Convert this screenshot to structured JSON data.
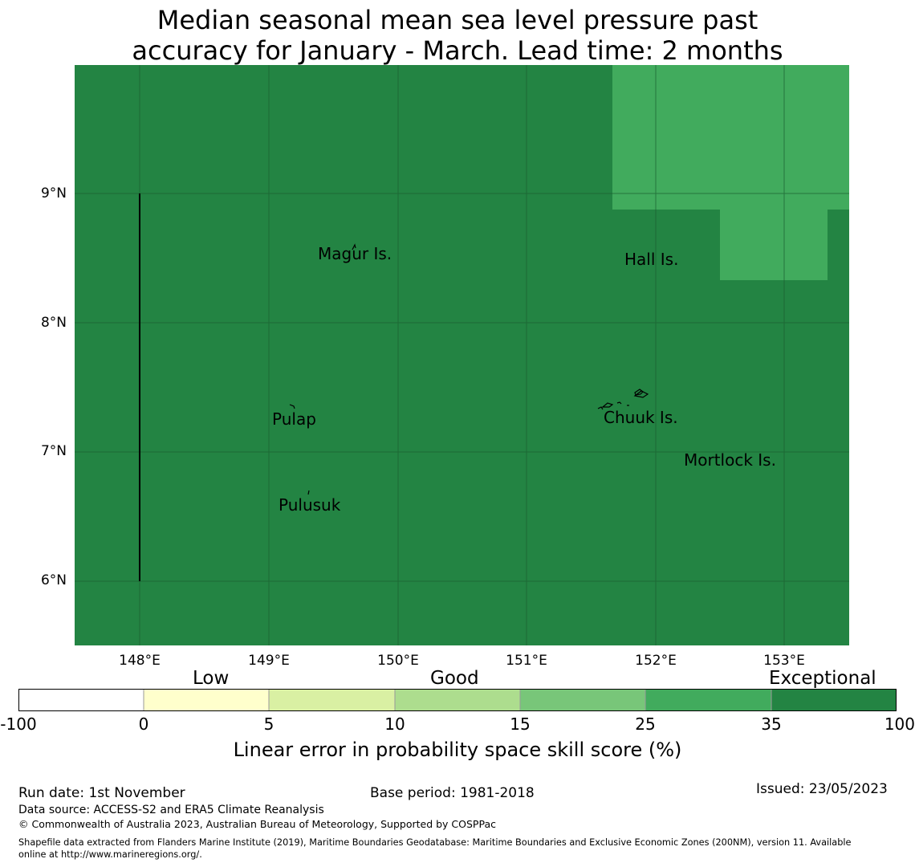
{
  "title": {
    "line1": "Median seasonal mean sea level pressure past",
    "line2": "accuracy for January - March. Lead time: 2 months"
  },
  "map": {
    "lon_range": [
      147.5,
      153.5
    ],
    "lat_range": [
      5.5,
      10.0
    ],
    "lat_ticks": [
      "9°N",
      "8°N",
      "7°N",
      "6°N"
    ],
    "lon_ticks": [
      "148°E",
      "149°E",
      "150°E",
      "151°E",
      "152°E",
      "153°E"
    ],
    "skill_regions": [
      {
        "category": "35-100",
        "color": "#238443",
        "lon": [
          147.5,
          153.5
        ],
        "lat": [
          5.5,
          10.0
        ]
      },
      {
        "category": "25-35",
        "color": "#41ab5d",
        "lon": [
          151.67,
          153.5
        ],
        "lat": [
          8.88,
          10.0
        ]
      },
      {
        "category": "25-35",
        "color": "#41ab5d",
        "lon": [
          152.5,
          153.33
        ],
        "lat": [
          8.33,
          8.88
        ]
      }
    ],
    "boundary_line": {
      "lon": 148.0,
      "lat": [
        6.0,
        9.0
      ]
    },
    "places": [
      {
        "name": "Magur Is.",
        "lon": 149.65,
        "lat": 8.52
      },
      {
        "name": "Hall Is.",
        "lon": 151.97,
        "lat": 8.48
      },
      {
        "name": "Pulap",
        "lon": 149.2,
        "lat": 7.24
      },
      {
        "name": "Chuuk Is.",
        "lon": 151.87,
        "lat": 7.25
      },
      {
        "name": "Mortlock Is.",
        "lon": 152.6,
        "lat": 6.92
      },
      {
        "name": "Pulusuk",
        "lon": 149.33,
        "lat": 6.58
      }
    ]
  },
  "legend": {
    "bands": [
      "Low",
      "Good",
      "Exceptional"
    ],
    "ticks": [
      "-100",
      "0",
      "5",
      "10",
      "15",
      "25",
      "35",
      "100"
    ],
    "colors": [
      "#ffffff",
      "#ffffcc",
      "#d9f0a3",
      "#addd8e",
      "#78c679",
      "#41ab5d",
      "#238443"
    ],
    "label": "Linear error in probability space skill score (%)"
  },
  "footer": {
    "run_date": "Run date: 1st November",
    "base_period": "Base period: 1981-2018",
    "issued": "Issued: 23/05/2023",
    "data_source": "Data source: ACCESS-S2 and ERA5 Climate Reanalysis",
    "copyright": "© Commonwealth of Australia 2023, Australian Bureau of Meteorology, Supported by COSPPac",
    "shapefile_line1": "Shapefile data extracted from Flanders Marine Institute (2019), Maritime Boundaries Geodatabase: Maritime Boundaries and Exclusive Economic Zones (200NM), version 11. Available",
    "shapefile_line2": "online at http://www.marineregions.org/."
  }
}
